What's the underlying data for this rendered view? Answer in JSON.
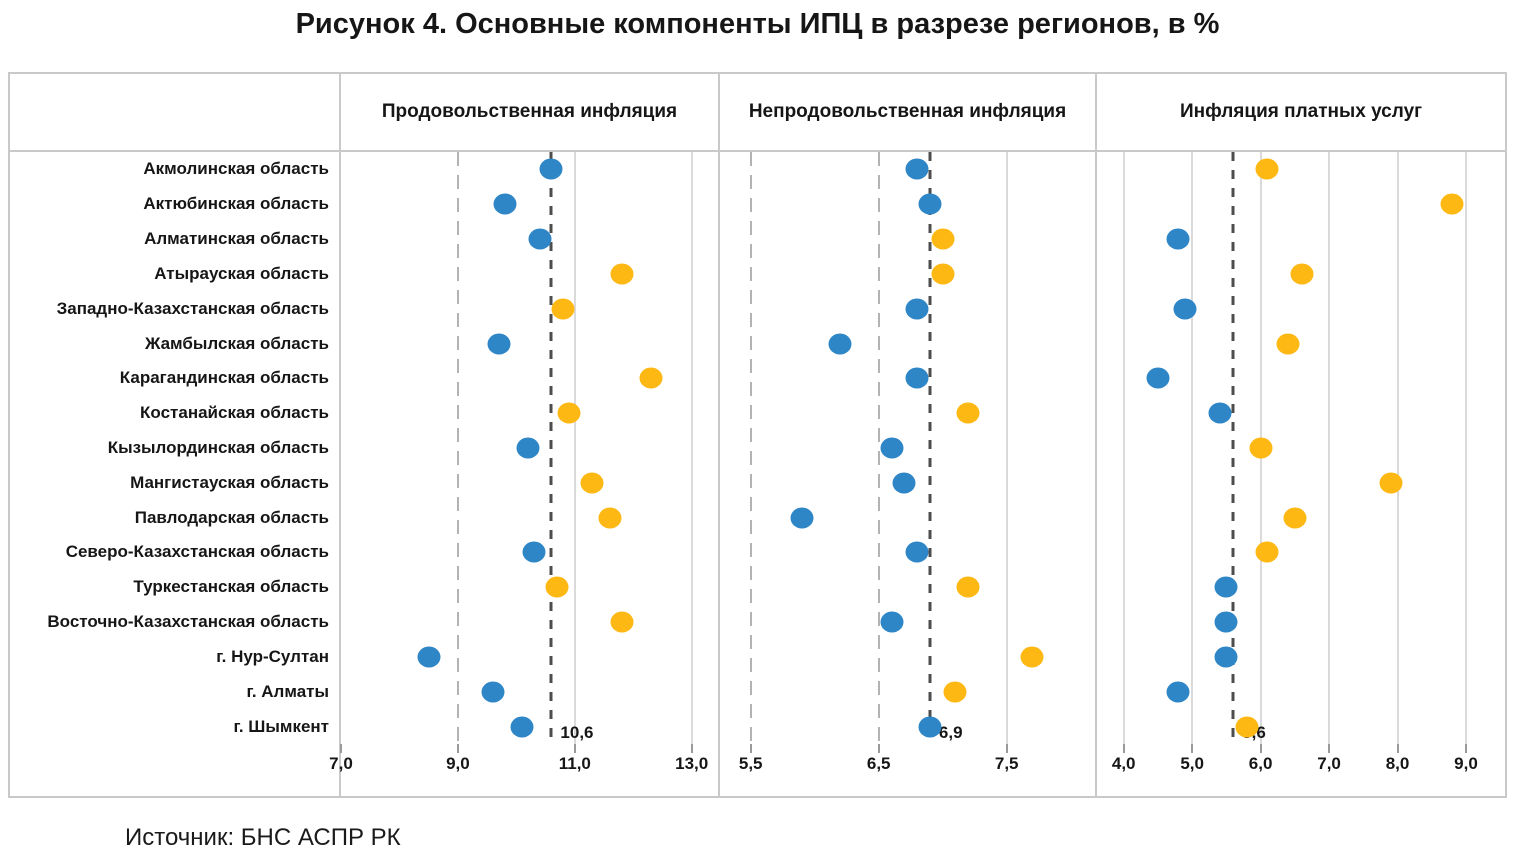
{
  "title": "Рисунок 4. Основные компоненты ИПЦ в разрезе регионов, в %",
  "source": "Источник: БНС АСПР РК",
  "chart_data": {
    "type": "scatter",
    "subtype": "horizontal-dot-plot",
    "grid": "vertical gridlines per panel, dashed country-average reference line with label",
    "legend_position": "none",
    "color_coding": {
      "above_average": "#FDB813",
      "below_average": "#2E86C6",
      "average_line": "#4d4d4d"
    },
    "categories": [
      "Акмолинская область",
      "Актюбинская область",
      "Алматинская область",
      "Атырауская область",
      "Западно-Казахстанская область",
      "Жамбылская область",
      "Карагандинская область",
      "Костанайская область",
      "Кызылординская область",
      "Мангистауская область",
      "Павлодарская область",
      "Северо-Казахстанская область",
      "Туркестанская область",
      "Восточно-Казахстанская область",
      "г. Нур-Султан",
      "г. Алматы",
      "г. Шымкент"
    ],
    "panels": [
      {
        "title": "Продовольственная инфляция",
        "xlim": [
          7.0,
          13.45
        ],
        "ticks": [
          {
            "v": 7.0,
            "label": "7,0",
            "grid": "none"
          },
          {
            "v": 9.0,
            "label": "9,0",
            "grid": "dashed"
          },
          {
            "v": 11.0,
            "label": "11,0",
            "grid": "solid"
          },
          {
            "v": 13.0,
            "label": "13,0",
            "grid": "solid"
          }
        ],
        "average": {
          "value": 10.6,
          "label": "10,6"
        },
        "values": [
          10.6,
          9.8,
          10.4,
          11.8,
          10.8,
          9.7,
          12.3,
          10.9,
          10.2,
          11.3,
          11.6,
          10.3,
          10.7,
          11.8,
          8.5,
          9.6,
          10.1
        ]
      },
      {
        "title": "Непродовольственная инфляция",
        "xlim": [
          5.26,
          8.19
        ],
        "ticks": [
          {
            "v": 5.5,
            "label": "5,5",
            "grid": "dashed"
          },
          {
            "v": 6.5,
            "label": "6,5",
            "grid": "dashed"
          },
          {
            "v": 7.5,
            "label": "7,5",
            "grid": "solid"
          }
        ],
        "average": {
          "value": 6.9,
          "label": "6,9"
        },
        "values": [
          6.8,
          6.9,
          7.0,
          7.0,
          6.8,
          6.2,
          6.8,
          7.2,
          6.6,
          6.7,
          5.9,
          6.8,
          7.2,
          6.6,
          7.7,
          7.1,
          6.9
        ]
      },
      {
        "title": "Инфляция платных услуг",
        "xlim": [
          3.61,
          9.57
        ],
        "ticks": [
          {
            "v": 4.0,
            "label": "4,0",
            "grid": "solid"
          },
          {
            "v": 5.0,
            "label": "5,0",
            "grid": "solid"
          },
          {
            "v": 6.0,
            "label": "6,0",
            "grid": "solid"
          },
          {
            "v": 7.0,
            "label": "7,0",
            "grid": "solid"
          },
          {
            "v": 8.0,
            "label": "8,0",
            "grid": "solid"
          },
          {
            "v": 9.0,
            "label": "9,0",
            "grid": "solid"
          }
        ],
        "average": {
          "value": 5.6,
          "label": "5,6"
        },
        "values": [
          6.1,
          8.8,
          4.8,
          6.6,
          4.9,
          6.4,
          4.5,
          5.4,
          6.0,
          7.9,
          6.5,
          6.1,
          5.5,
          5.5,
          5.5,
          4.8,
          5.8
        ]
      }
    ]
  }
}
